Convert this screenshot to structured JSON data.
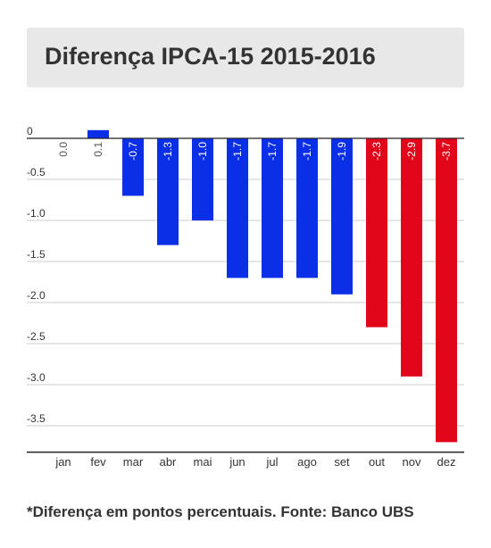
{
  "header": {
    "title": "Diferença IPCA-15 2015-2016"
  },
  "footnote": "*Diferença em pontos percentuais. Fonte: Banco UBS",
  "colors": {
    "positive_series": "#0b2fe6",
    "negative_series": "#e2061b",
    "text": "#333333",
    "grid": "#cccccc"
  },
  "chart_data": {
    "type": "bar",
    "title": "Diferença IPCA-15 2015-2016",
    "xlabel": "",
    "ylabel": "",
    "categories": [
      "jan",
      "fev",
      "mar",
      "abr",
      "mai",
      "jun",
      "jul",
      "ago",
      "set",
      "out",
      "nov",
      "dez"
    ],
    "values": [
      0.0,
      0.1,
      -0.7,
      -1.3,
      -1.0,
      -1.7,
      -1.7,
      -1.7,
      -1.9,
      -2.3,
      -2.9,
      -3.7
    ],
    "data_labels": [
      "0.0",
      "0.1",
      "-0.7",
      "-1.3",
      "-1.0",
      "-1.7",
      "-1.7",
      "-1.7",
      "-1.9",
      "-2.3",
      "-2.9",
      "-3.7"
    ],
    "bar_colors": [
      "blue",
      "blue",
      "blue",
      "blue",
      "blue",
      "blue",
      "blue",
      "blue",
      "blue",
      "red",
      "red",
      "red"
    ],
    "y_ticks": [
      0,
      -0.5,
      -1.0,
      -1.5,
      -2.0,
      -2.5,
      -3.0,
      -3.5
    ],
    "y_tick_labels": [
      "0",
      "-0.5",
      "-1.0",
      "-1.5",
      "-2.0",
      "-2.5",
      "-3.0",
      "-3.5"
    ],
    "ylim": [
      -3.8,
      0.1
    ],
    "grid": true,
    "legend": "none"
  }
}
